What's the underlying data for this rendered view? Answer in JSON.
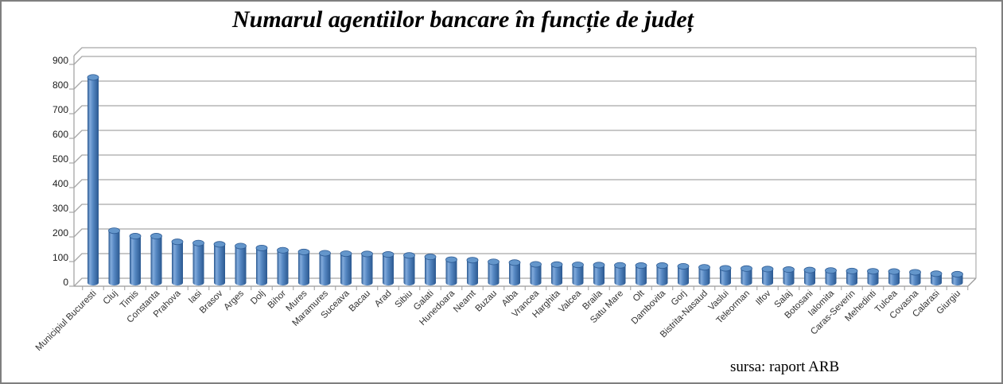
{
  "title": "Numarul agentiilor bancare în funcție de județ",
  "source_note": "sursa: raport ARB",
  "chart_data": {
    "type": "bar",
    "style": "3d-cylinder-column",
    "title": "Numarul agentiilor bancare în funcție de județ",
    "xlabel": "",
    "ylabel": "",
    "ylim": [
      0,
      900
    ],
    "ytick_interval": 100,
    "grid": true,
    "legend": false,
    "source": "sursa: raport ARB",
    "bar_color": "#4F81BD",
    "bar_edge_color": "#2D5B94",
    "bar_highlight_color": "#82ABDC",
    "bar_top_color": "#6496CB",
    "gridline_color": "#A6A6A6",
    "categories": [
      "Municipiul Bucuresti",
      "Cluj",
      "Timis",
      "Constanta",
      "Prahova",
      "Iasi",
      "Brasov",
      "Arges",
      "Dolj",
      "Bihor",
      "Mures",
      "Maramures",
      "Suceava",
      "Bacau",
      "Arad",
      "Sibiu",
      "Galati",
      "Hunedoara",
      "Neamt",
      "Buzau",
      "Alba",
      "Vrancea",
      "Harghita",
      "Valcea",
      "Braila",
      "Satu Mare",
      "Olt",
      "Dambovita",
      "Gorj",
      "Bistrita-Nasaud",
      "Vaslui",
      "Teleorman",
      "Ilfov",
      "Salaj",
      "Botosani",
      "Ialomita",
      "Caras-Severin",
      "Mehedinti",
      "Tulcea",
      "Covasna",
      "Calarasi",
      "Giurgiu"
    ],
    "values": [
      830,
      210,
      188,
      188,
      165,
      160,
      155,
      148,
      140,
      131,
      124,
      119,
      117,
      116,
      114,
      110,
      104,
      93,
      91,
      84,
      81,
      74,
      73,
      72,
      71,
      70,
      69,
      69,
      66,
      62,
      58,
      57,
      55,
      53,
      51,
      49,
      47,
      46,
      45,
      42,
      36,
      34
    ]
  }
}
